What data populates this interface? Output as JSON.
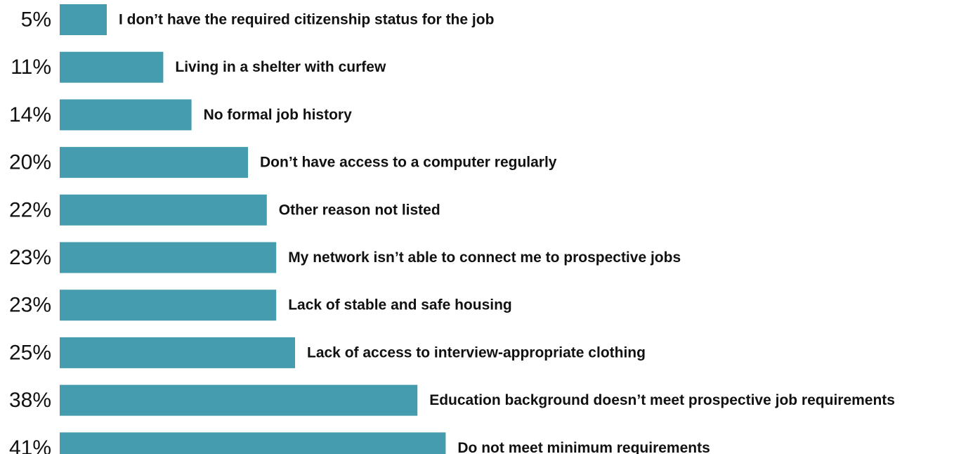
{
  "colors": {
    "bar": "#459cae",
    "text": "#111111",
    "background": "#ffffff"
  },
  "chart_data": {
    "type": "bar",
    "orientation": "horizontal",
    "categories": [
      "I don’t have the required citizenship status for the job",
      "Living in a shelter with curfew",
      "No formal job history",
      "Don’t have access to a computer regularly",
      "Other reason not listed",
      "My network isn’t able to connect me to prospective jobs",
      "Lack of stable and safe housing",
      "Lack of access to interview-appropriate clothing",
      "Education background doesn’t meet prospective job requirements",
      "Do not meet minimum requirements"
    ],
    "values": [
      5,
      11,
      14,
      20,
      22,
      23,
      23,
      25,
      38,
      41
    ],
    "value_labels": [
      "5%",
      "11%",
      "14%",
      "20%",
      "22%",
      "23%",
      "23%",
      "25%",
      "38%",
      "41%"
    ],
    "xlim": [
      0,
      41
    ],
    "grid": false,
    "legend": "none"
  }
}
